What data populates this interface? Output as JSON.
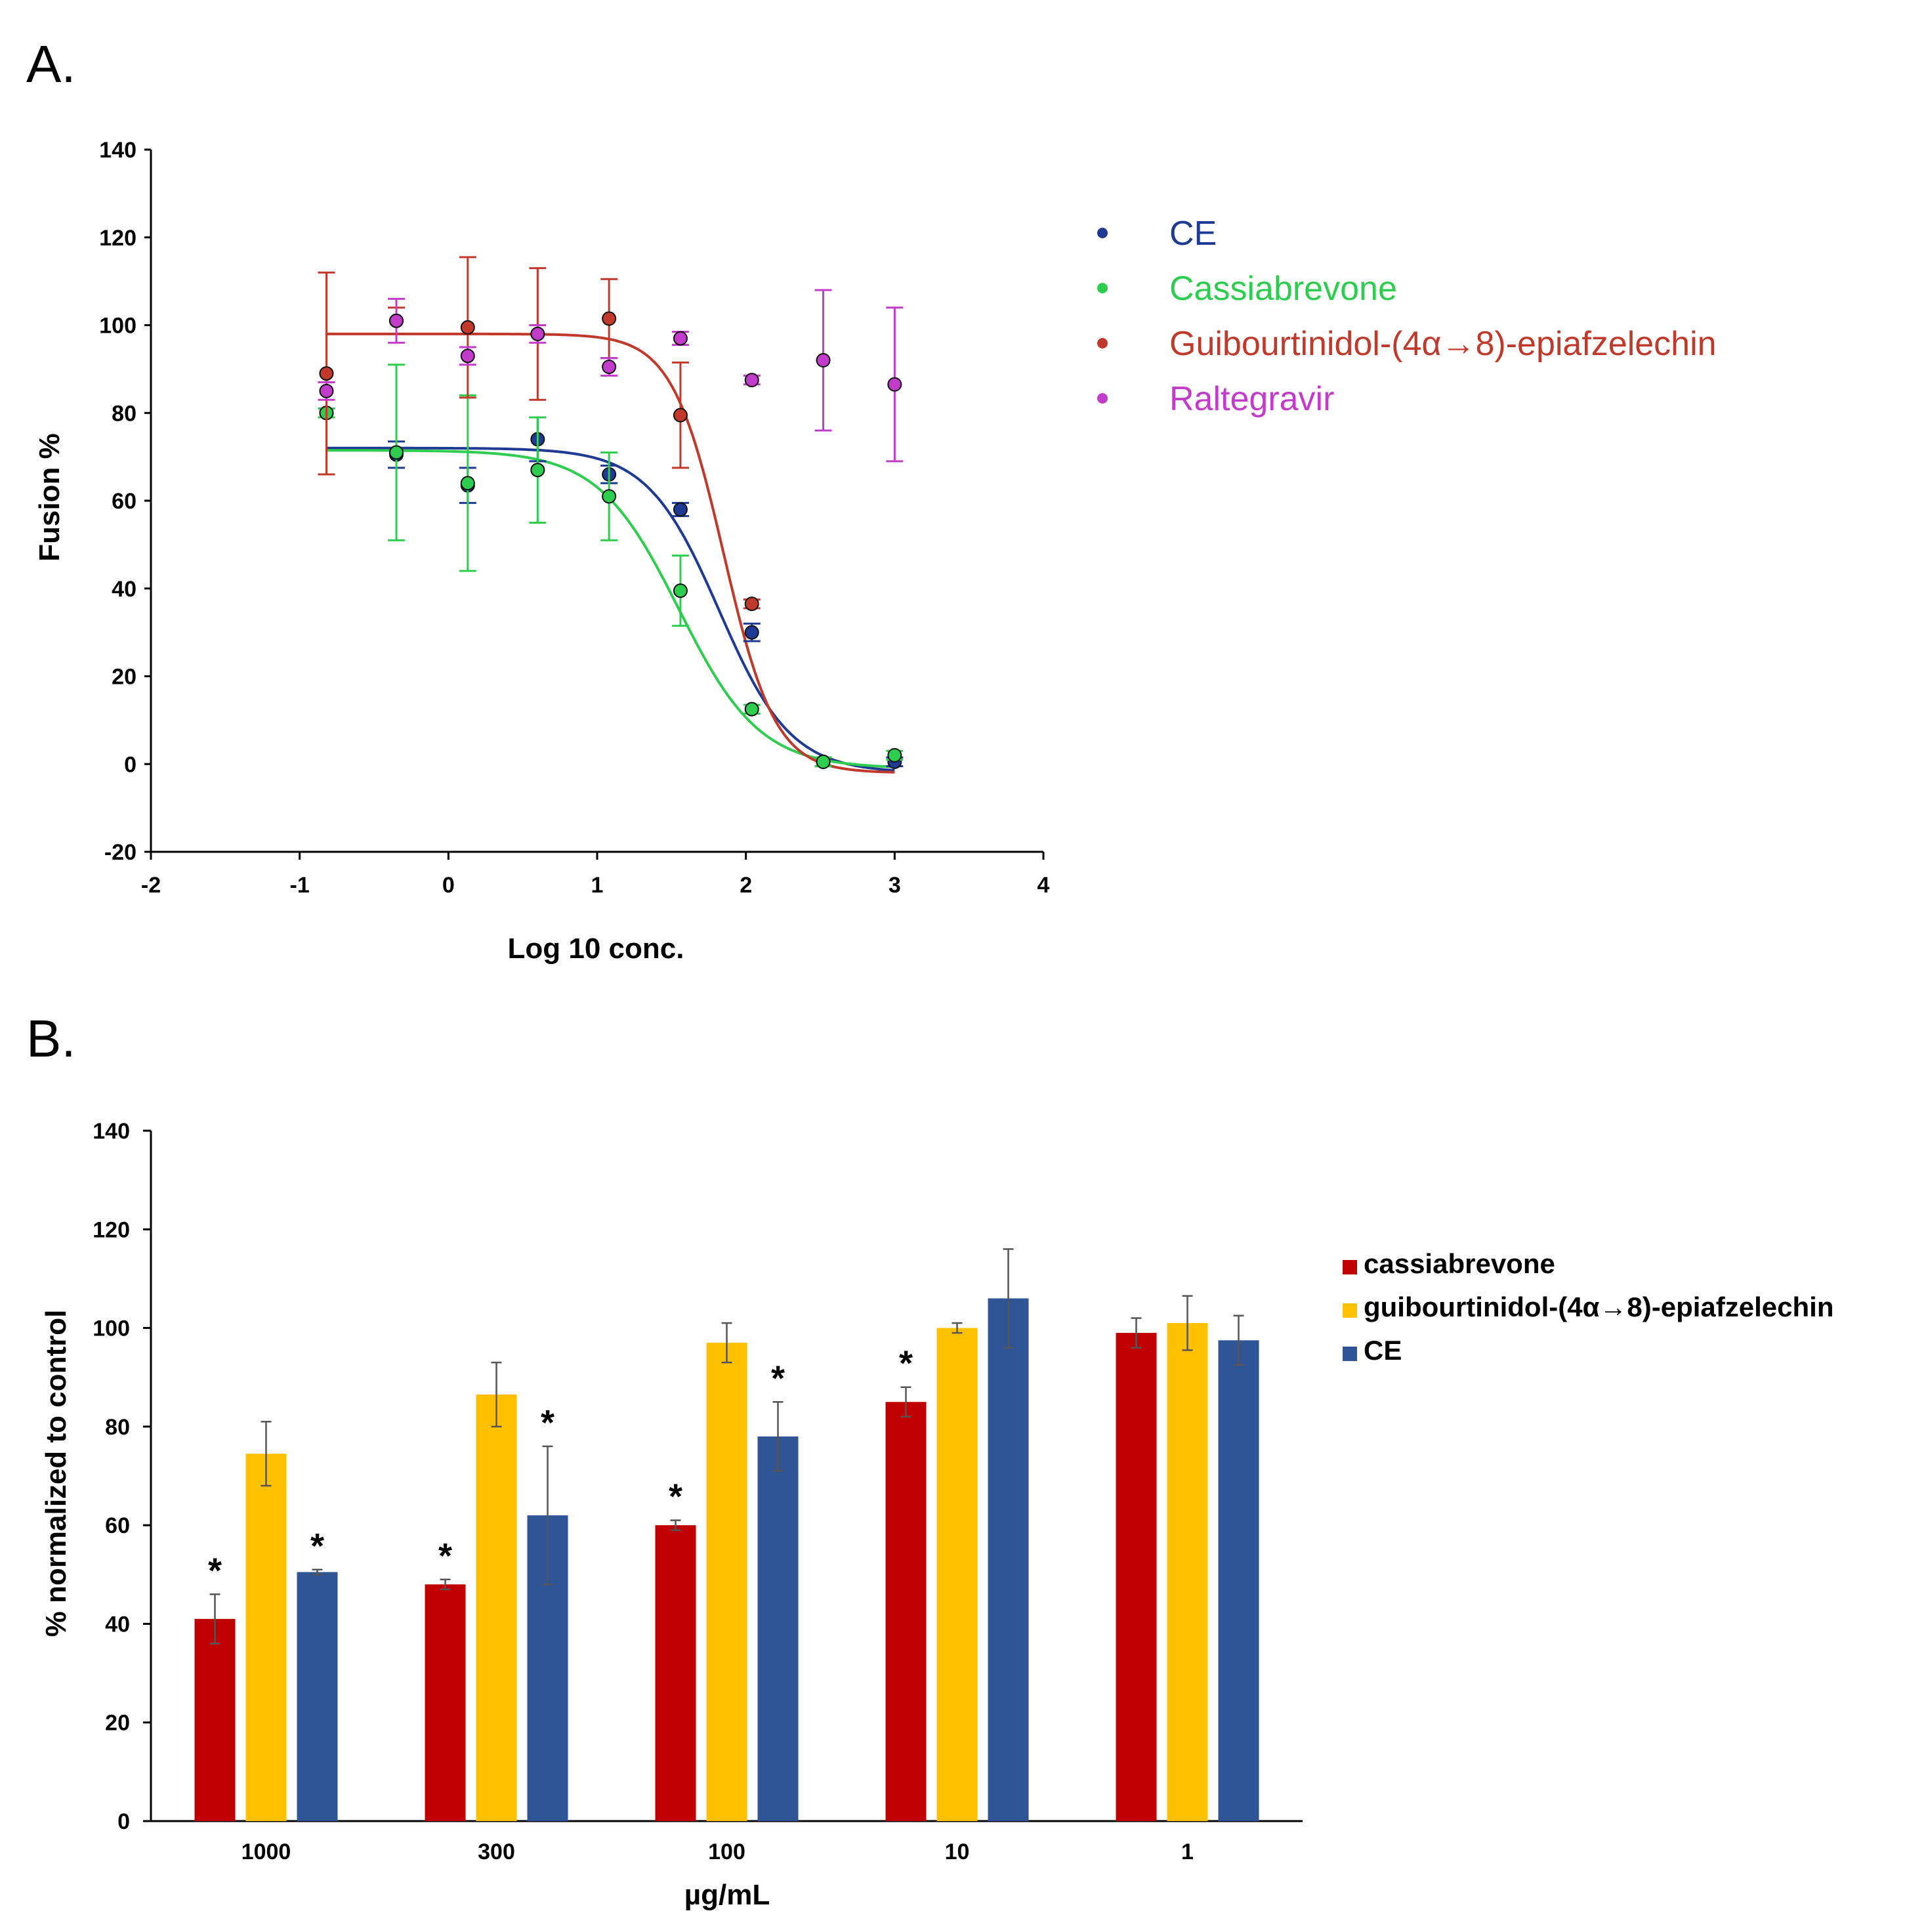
{
  "colors": {
    "ce": "#1f3a93",
    "cassiabrevone": "#2ecc4f",
    "guibourtinidol": "#c0392b",
    "raltegravir": "#c13cc8",
    "bar_cassiabrevone": "#c00000",
    "bar_guibourtinidol": "#ffc000",
    "bar_ce": "#2f5597"
  },
  "chart_data": [
    {
      "panel_label": "A.",
      "type": "scatter",
      "xlabel": "Log 10 conc.",
      "ylabel": "Fusion %",
      "xlim": [
        -2,
        4
      ],
      "ylim": [
        -20,
        140
      ],
      "x_ticks": [
        "-2",
        "-1",
        "0",
        "1",
        "2",
        "3",
        "4"
      ],
      "y_ticks": [
        "-20",
        "0",
        "20",
        "40",
        "60",
        "80",
        "100",
        "120",
        "140"
      ],
      "legend_position": "top-right",
      "series": [
        {
          "name": "CE",
          "color_key": "ce",
          "points": [
            {
              "x": -0.82,
              "y": 80,
              "err": 1
            },
            {
              "x": -0.35,
              "y": 70.5,
              "err": 3
            },
            {
              "x": 0.13,
              "y": 63.5,
              "err": 4
            },
            {
              "x": 0.6,
              "y": 74,
              "err": 5
            },
            {
              "x": 1.08,
              "y": 66,
              "err": 2
            },
            {
              "x": 1.56,
              "y": 58,
              "err": 1.5
            },
            {
              "x": 2.04,
              "y": 30,
              "err": 2
            },
            {
              "x": 2.52,
              "y": 0.5,
              "err": 1
            },
            {
              "x": 3.0,
              "y": 0.5,
              "err": 1
            }
          ],
          "fit": {
            "top": 72,
            "bottom": -2,
            "log_ic50": 1.82,
            "hill": 1.8
          }
        },
        {
          "name": "Cassiabrevone",
          "color_key": "cassiabrevone",
          "points": [
            {
              "x": -0.82,
              "y": 80,
              "err": 1
            },
            {
              "x": -0.35,
              "y": 71,
              "err": 20
            },
            {
              "x": 0.13,
              "y": 64,
              "err": 20
            },
            {
              "x": 0.6,
              "y": 67,
              "err": 12
            },
            {
              "x": 1.08,
              "y": 61,
              "err": 10
            },
            {
              "x": 1.56,
              "y": 39.5,
              "err": 8
            },
            {
              "x": 2.04,
              "y": 12.5,
              "err": 1
            },
            {
              "x": 2.52,
              "y": 0.5,
              "err": 1
            },
            {
              "x": 3.0,
              "y": 2,
              "err": 1
            }
          ],
          "fit": {
            "top": 71.5,
            "bottom": -1,
            "log_ic50": 1.55,
            "hill": 1.6
          }
        },
        {
          "name": "Guibourtinidol-(4α→8)-epiafzelechin",
          "color_key": "guibourtinidol",
          "points": [
            {
              "x": -0.82,
              "y": 89,
              "err": 23
            },
            {
              "x": -0.35,
              "y": 101,
              "err": 3
            },
            {
              "x": 0.13,
              "y": 99.5,
              "err": 16
            },
            {
              "x": 0.6,
              "y": 98,
              "err": 15
            },
            {
              "x": 1.08,
              "y": 101.5,
              "err": 9
            },
            {
              "x": 1.56,
              "y": 79.5,
              "err": 12
            },
            {
              "x": 2.04,
              "y": 36.5,
              "err": 1
            }
          ],
          "fit": {
            "top": 98,
            "bottom": -2,
            "log_ic50": 1.85,
            "hill": 2.5
          }
        },
        {
          "name": "Raltegravir",
          "color_key": "raltegravir",
          "points": [
            {
              "x": -0.82,
              "y": 85,
              "err": 2
            },
            {
              "x": -0.35,
              "y": 101,
              "err": 5
            },
            {
              "x": 0.13,
              "y": 93,
              "err": 2
            },
            {
              "x": 0.6,
              "y": 98,
              "err": 2
            },
            {
              "x": 1.08,
              "y": 90.5,
              "err": 2
            },
            {
              "x": 1.56,
              "y": 97,
              "err": 1.5
            },
            {
              "x": 2.04,
              "y": 87.5,
              "err": 1
            },
            {
              "x": 2.52,
              "y": 92,
              "err": 16
            },
            {
              "x": 3.0,
              "y": 86.5,
              "err": 17.5
            }
          ]
        }
      ]
    },
    {
      "panel_label": "B.",
      "type": "bar",
      "xlabel": "µg/mL",
      "ylabel": "% normalized to control",
      "ylim": [
        0,
        140
      ],
      "y_ticks": [
        "0",
        "20",
        "40",
        "60",
        "80",
        "100",
        "120",
        "140"
      ],
      "categories": [
        "1000",
        "300",
        "100",
        "10",
        "1"
      ],
      "legend_position": "right",
      "significance_marker": "*",
      "series": [
        {
          "name": "cassiabrevone",
          "color_key": "bar_cassiabrevone",
          "values": [
            41,
            48,
            60,
            85,
            99
          ],
          "errors": [
            5,
            1,
            1,
            3,
            3
          ],
          "significant": [
            true,
            true,
            true,
            true,
            false
          ]
        },
        {
          "name": "guibourtinidol-(4α→8)-epiafzelechin",
          "color_key": "bar_guibourtinidol",
          "values": [
            74.5,
            86.5,
            97,
            100,
            101
          ],
          "errors": [
            6.5,
            6.5,
            4,
            1,
            5.5
          ],
          "significant": [
            false,
            false,
            false,
            false,
            false
          ]
        },
        {
          "name": "CE",
          "color_key": "bar_ce",
          "values": [
            50.5,
            62,
            78,
            106,
            97.5
          ],
          "errors": [
            0.5,
            14,
            7,
            10,
            5
          ],
          "significant": [
            true,
            true,
            true,
            false,
            false
          ]
        }
      ]
    }
  ]
}
